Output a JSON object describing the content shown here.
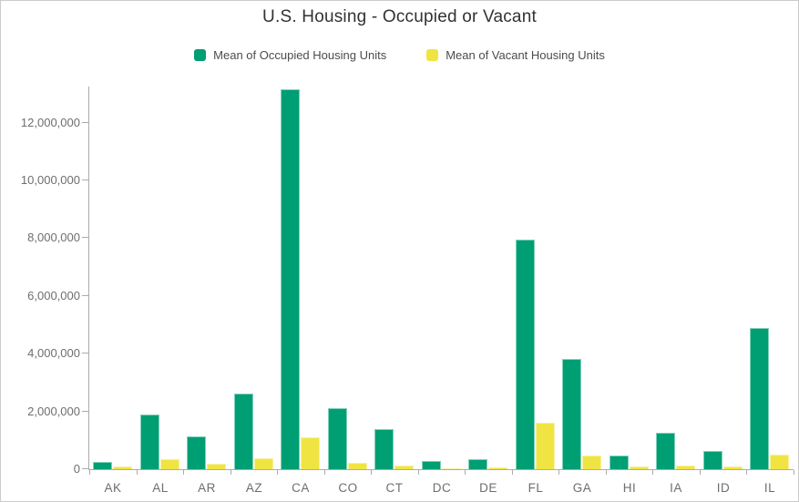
{
  "title": "U.S. Housing - Occupied or Vacant",
  "colors": {
    "occupied_fill": "#009E73",
    "occupied_edge": "#7FD1B9",
    "vacant_fill": "#F0E442",
    "vacant_edge": "#F6F1A3",
    "axis_line": "#ABABAB",
    "tick_label_text": "#6E6E6E",
    "title_text": "#323232",
    "legend_text": "#4C4C4C",
    "frame_border": "#CBCBCB"
  },
  "legend": {
    "items": [
      {
        "id": "occupied",
        "label": "Mean of Occupied Housing Units",
        "color": "#009E73"
      },
      {
        "id": "vacant",
        "label": "Mean of Vacant Housing Units",
        "color": "#F0E442"
      }
    ]
  },
  "chart_data": {
    "type": "bar",
    "title": "U.S. Housing - Occupied or Vacant",
    "categories": [
      "AK",
      "AL",
      "AR",
      "AZ",
      "CA",
      "CO",
      "CT",
      "DC",
      "DE",
      "FL",
      "GA",
      "HI",
      "IA",
      "ID",
      "IL"
    ],
    "series": [
      {
        "name": "Mean of Occupied Housing Units",
        "color": "#009E73",
        "edge_color": "#7FD1B9",
        "values": [
          250000,
          1880000,
          1150000,
          2630000,
          13150000,
          2100000,
          1380000,
          270000,
          360000,
          7950000,
          3820000,
          470000,
          1250000,
          620000,
          4880000
        ]
      },
      {
        "name": "Mean of Vacant Housing Units",
        "color": "#F0E442",
        "edge_color": "#F6F1A3",
        "values": [
          90000,
          360000,
          200000,
          390000,
          1090000,
          230000,
          140000,
          30000,
          60000,
          1620000,
          480000,
          80000,
          140000,
          90000,
          490000
        ]
      }
    ],
    "xlabel": "",
    "ylabel": "",
    "ylim": [
      0,
      13250000
    ],
    "yticks": [
      0,
      2000000,
      4000000,
      6000000,
      8000000,
      10000000,
      12000000
    ],
    "ytick_labels": [
      "0",
      "2,000,000",
      "4,000,000",
      "6,000,000",
      "8,000,000",
      "10,000,000",
      "12,000,000"
    ],
    "grid": false,
    "legend_position": "top-center"
  }
}
